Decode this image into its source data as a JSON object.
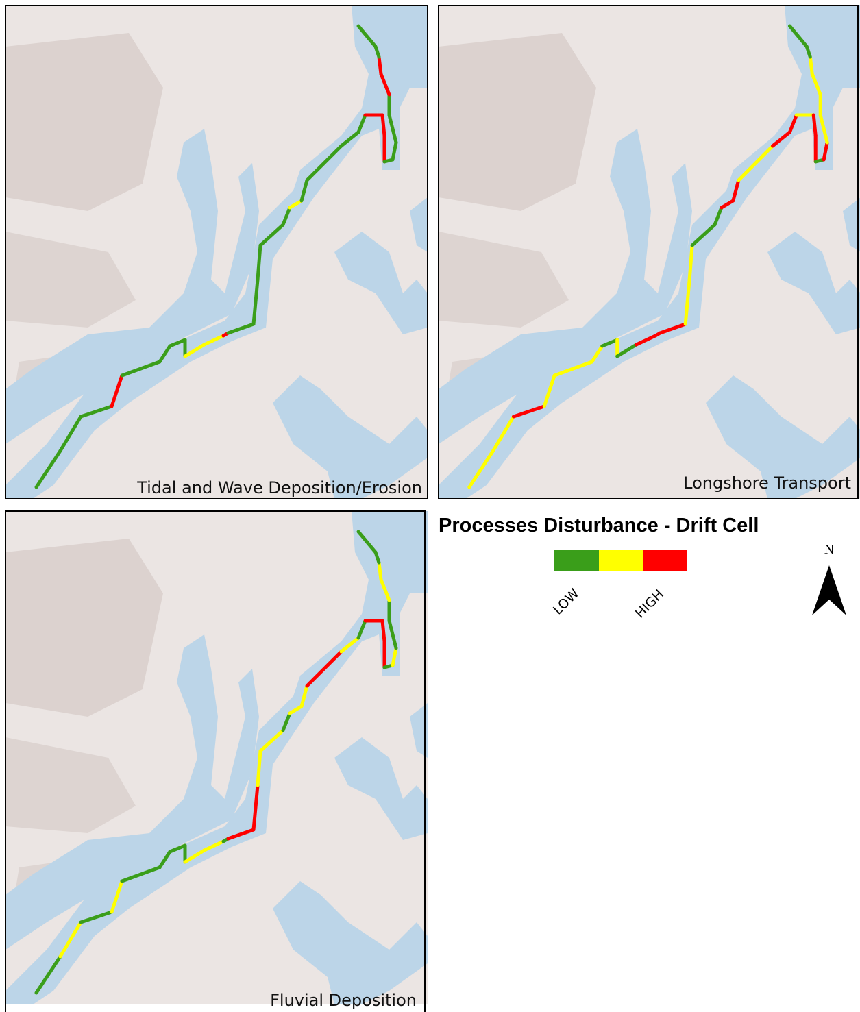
{
  "panels": [
    {
      "label": "Tidal and Wave Deposition/Erosion"
    },
    {
      "label": "Longshore Transport"
    },
    {
      "label": "Fluvial Deposition"
    }
  ],
  "legend": {
    "title": "Processes Disturbance - Drift Cell",
    "low": "LOW",
    "high": "HIGH"
  },
  "north": "N"
}
